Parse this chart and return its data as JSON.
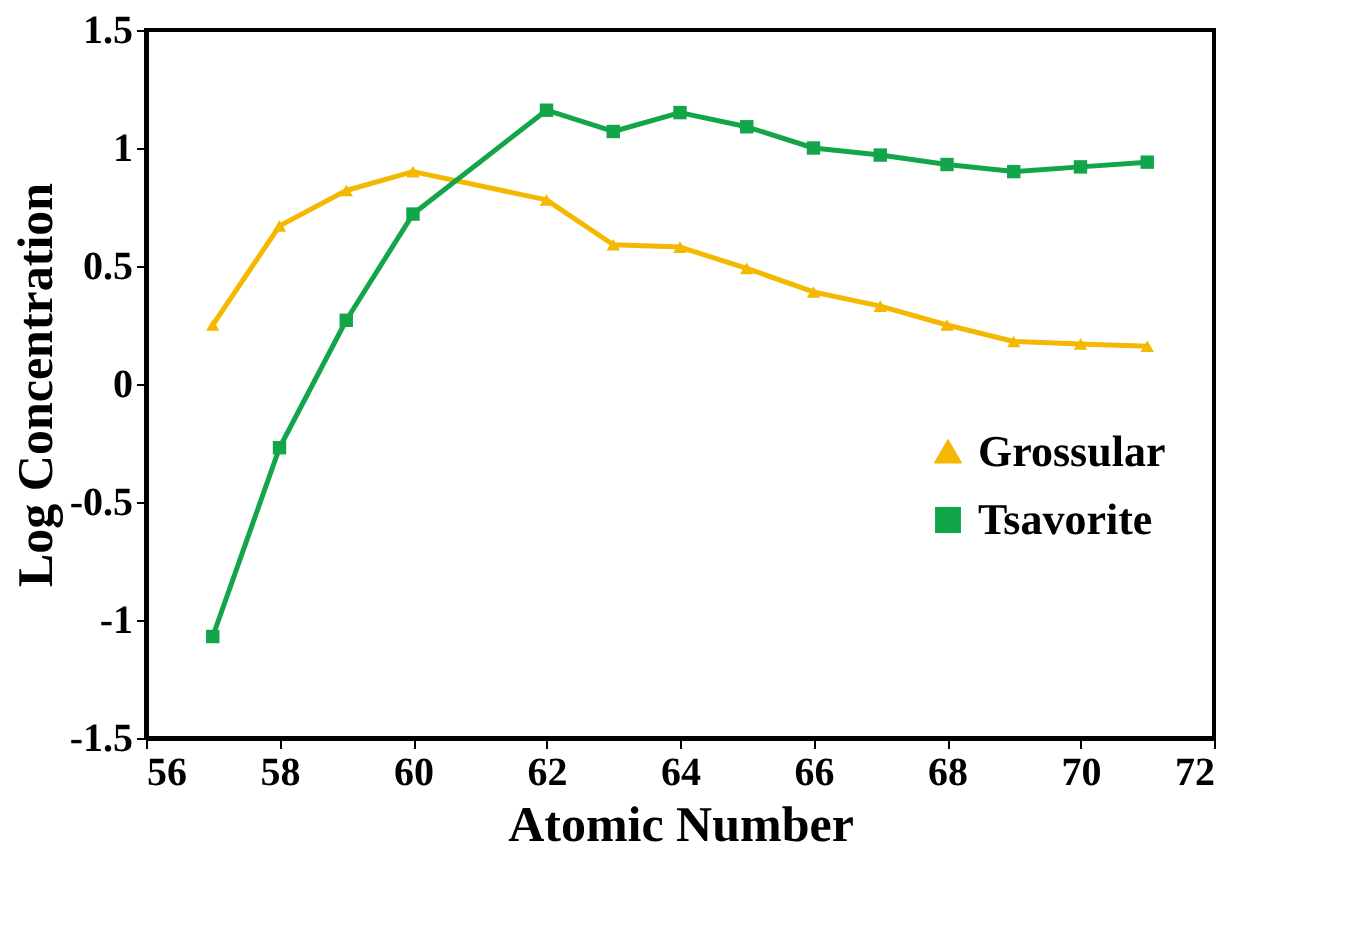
{
  "chart_data": {
    "type": "line",
    "xlabel": "Atomic Number",
    "ylabel": "Log Concentration",
    "x": [
      57,
      58,
      59,
      60,
      62,
      63,
      64,
      65,
      66,
      67,
      68,
      69,
      70,
      71
    ],
    "series": [
      {
        "name": "Grossular",
        "color": "#f5b800",
        "marker": "triangle",
        "values": [
          0.25,
          0.67,
          0.82,
          0.9,
          0.78,
          0.59,
          0.58,
          0.49,
          0.39,
          0.33,
          0.25,
          0.18,
          0.17,
          0.16
        ]
      },
      {
        "name": "Tsavorite",
        "color": "#12a54a",
        "marker": "square",
        "values": [
          -1.07,
          -0.27,
          0.27,
          0.72,
          1.16,
          1.07,
          1.15,
          1.09,
          1.0,
          0.97,
          0.93,
          0.9,
          0.92,
          0.94
        ]
      }
    ],
    "xlim": [
      56,
      72
    ],
    "xticks": [
      56,
      58,
      60,
      62,
      64,
      66,
      68,
      70,
      72
    ],
    "ylim": [
      -1.5,
      1.5
    ],
    "yticks": [
      -1.5,
      -1,
      -0.5,
      0,
      0.5,
      1,
      1.5
    ],
    "grid": false,
    "legend": "right",
    "line_style": "solid"
  }
}
